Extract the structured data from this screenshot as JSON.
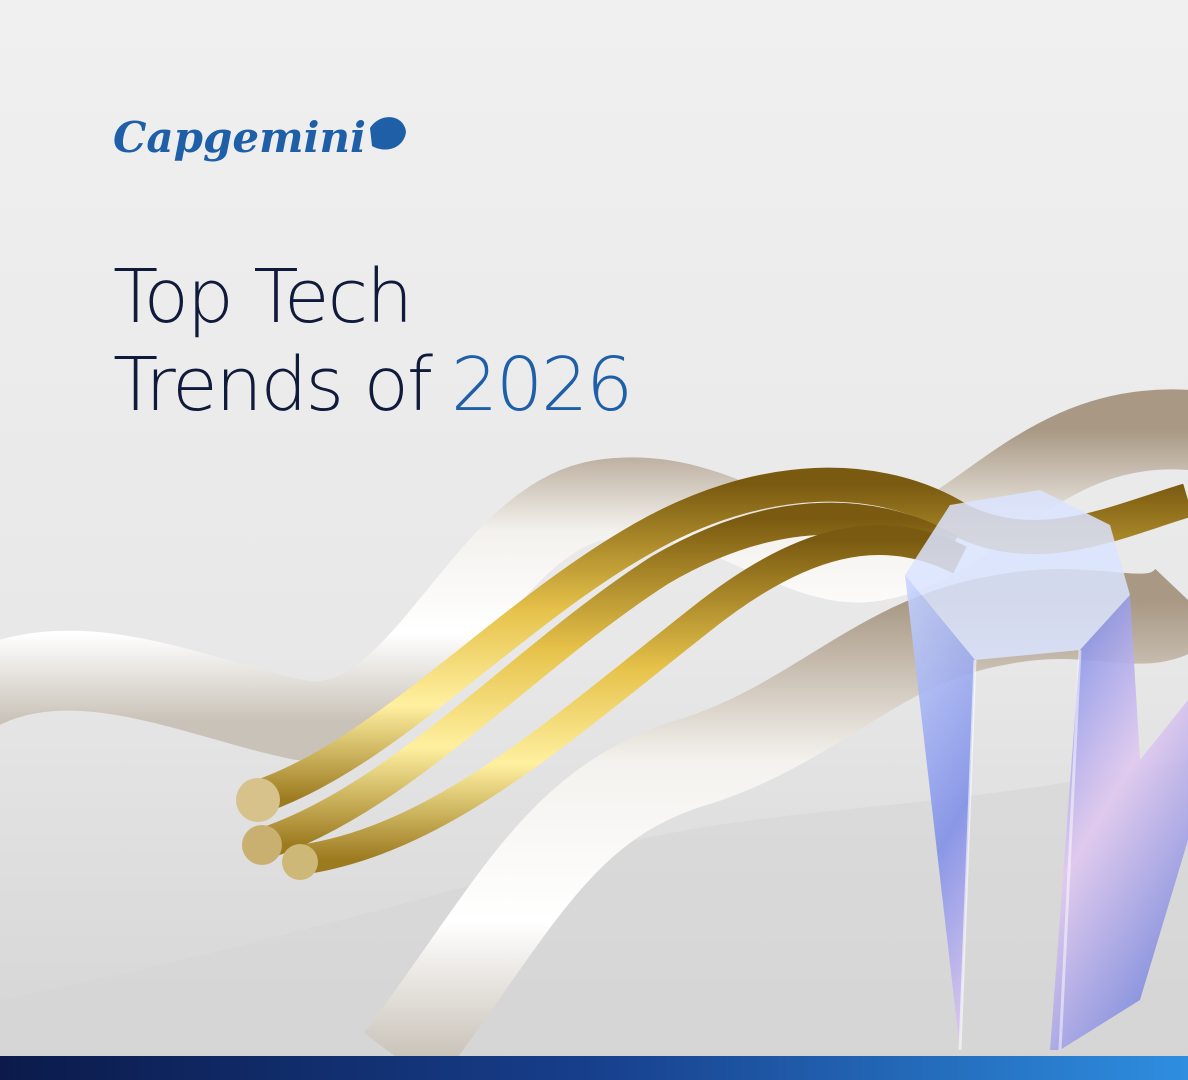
{
  "logo": {
    "text": "Capgemini"
  },
  "headline": {
    "line1": "Top Tech",
    "line2": "Trends of",
    "highlight": "2026"
  }
}
